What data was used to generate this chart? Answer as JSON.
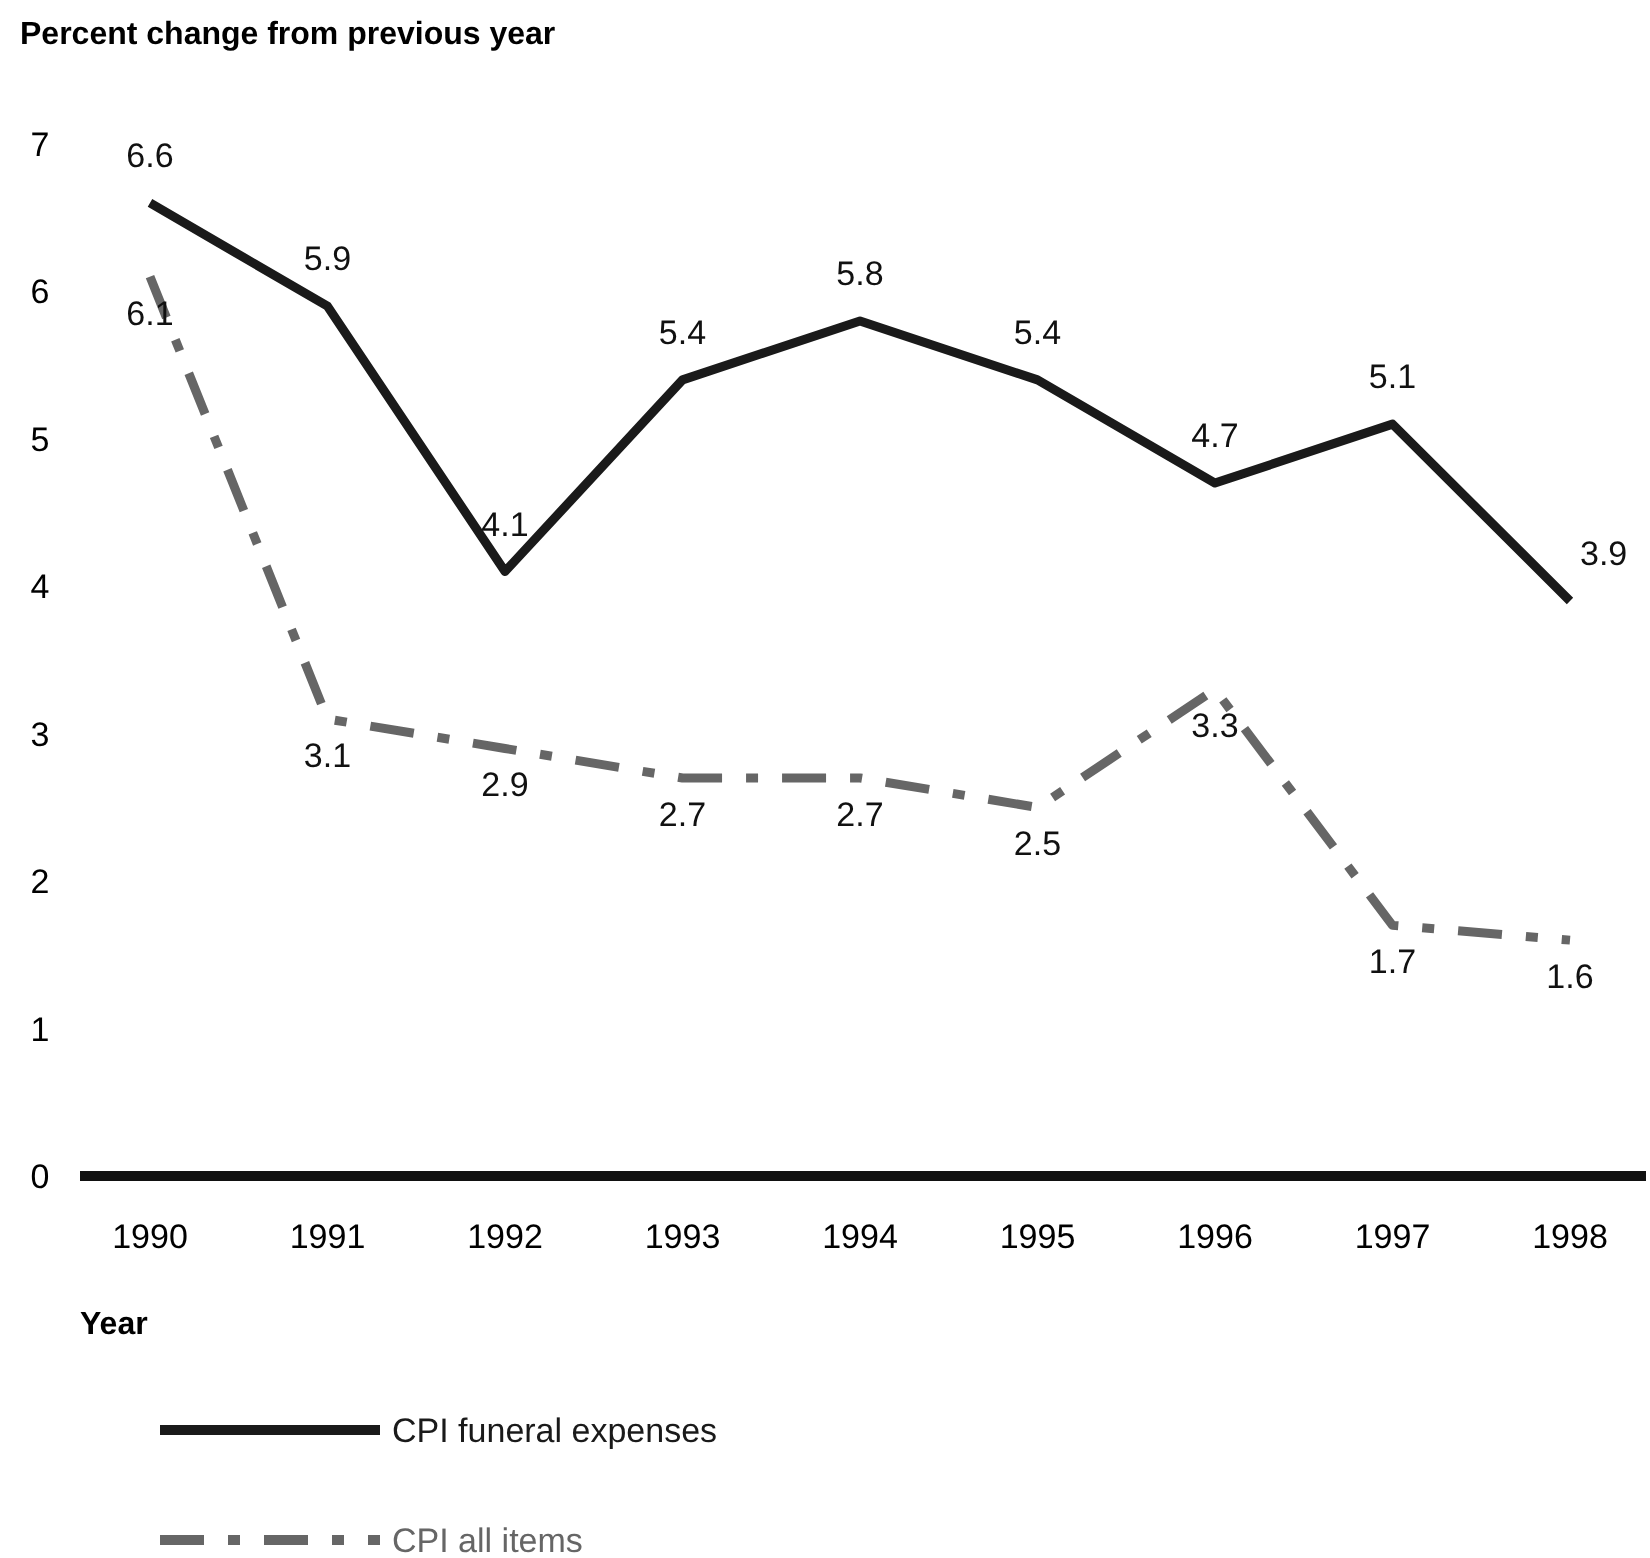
{
  "chart_data": {
    "type": "line",
    "title": "Percent change from previous year",
    "xlabel": "Year",
    "categories": [
      "1990",
      "1991",
      "1992",
      "1993",
      "1994",
      "1995",
      "1996",
      "1997",
      "1998"
    ],
    "series": [
      {
        "name": "CPI funeral expenses",
        "color": "#1a1a1a",
        "line_style": "solid",
        "values": [
          6.6,
          5.9,
          4.1,
          5.4,
          5.8,
          5.4,
          4.7,
          5.1,
          3.9
        ]
      },
      {
        "name": "CPI all items",
        "color": "#666666",
        "line_style": "dashed",
        "values": [
          6.1,
          3.1,
          2.9,
          2.7,
          2.7,
          2.5,
          3.3,
          1.7,
          1.6
        ]
      }
    ],
    "ylim": [
      0,
      7
    ],
    "yticks": [
      0,
      1,
      2,
      3,
      4,
      5,
      6,
      7
    ],
    "grid": false,
    "legend": "bottom",
    "data_labels": true,
    "marker": "none"
  }
}
